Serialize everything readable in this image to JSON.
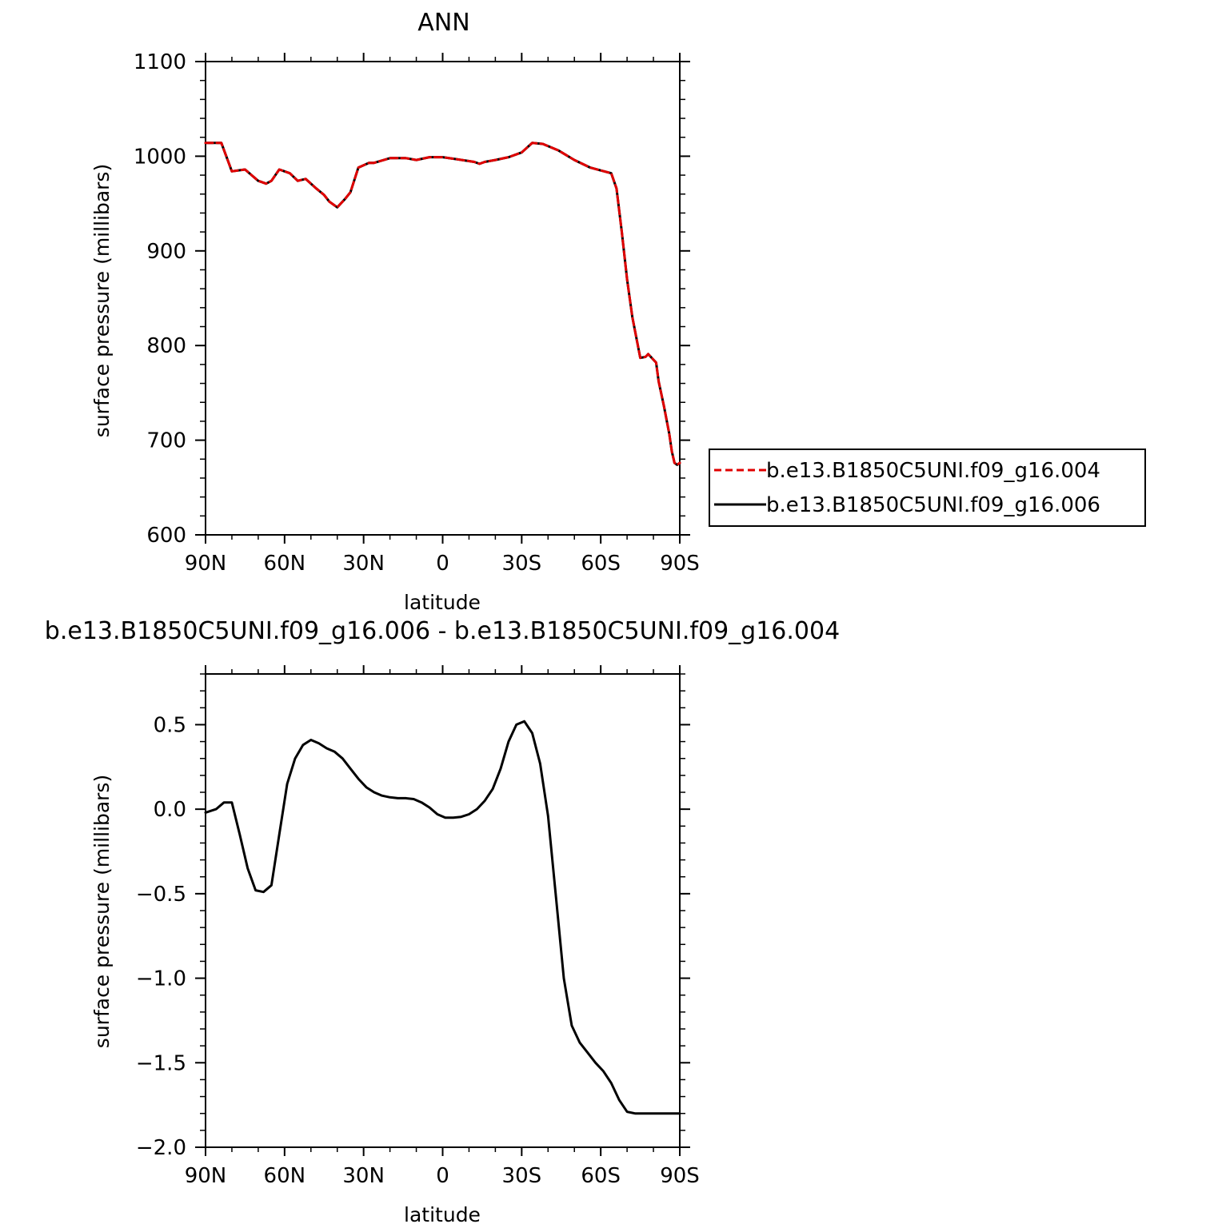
{
  "chart_data": [
    {
      "type": "line",
      "title": "ANN",
      "xlabel": "latitude",
      "ylabel": "surface pressure (millibars)",
      "xlim": [
        90,
        -90
      ],
      "ylim": [
        600,
        1100
      ],
      "x_ticks": [
        {
          "value": 90,
          "label": "90N"
        },
        {
          "value": 60,
          "label": "60N"
        },
        {
          "value": 30,
          "label": "30N"
        },
        {
          "value": 0,
          "label": "0"
        },
        {
          "value": -30,
          "label": "30S"
        },
        {
          "value": -60,
          "label": "60S"
        },
        {
          "value": -90,
          "label": "90S"
        }
      ],
      "y_ticks": [
        {
          "value": 600,
          "label": "600"
        },
        {
          "value": 700,
          "label": "700"
        },
        {
          "value": 800,
          "label": "800"
        },
        {
          "value": 900,
          "label": "900"
        },
        {
          "value": 1000,
          "label": "1000"
        },
        {
          "value": 1100,
          "label": "1100"
        }
      ],
      "legend": "right",
      "x": [
        90,
        84,
        80,
        75,
        70,
        67,
        65,
        62,
        60,
        58,
        55,
        52,
        48,
        45,
        43,
        40,
        37,
        35,
        32,
        28,
        26,
        20,
        14,
        10,
        5,
        0,
        -5,
        -12,
        -14,
        -16,
        -20,
        -25,
        -30,
        -34,
        -38,
        -44,
        -50,
        -56,
        -60,
        -64,
        -66,
        -68,
        -70,
        -72,
        -75,
        -77,
        -78,
        -81,
        -82,
        -84,
        -86,
        -87,
        -88,
        -89,
        -90
      ],
      "series": [
        {
          "name": "b.e13.B1850C5UNI.f09_g16.004",
          "color": "#e00000",
          "dash": "dashed",
          "values": [
            1014,
            1014,
            984,
            986,
            974,
            971,
            974,
            986,
            984,
            982,
            974,
            976,
            966,
            959,
            952,
            946,
            955,
            962,
            988,
            993,
            993,
            998,
            998,
            996,
            999,
            999,
            997,
            994,
            992,
            994,
            996,
            999,
            1004,
            1014,
            1013,
            1006,
            996,
            988,
            985,
            982,
            966,
            920,
            870,
            830,
            787,
            788,
            791,
            782,
            762,
            736,
            707,
            688,
            676,
            674,
            676
          ]
        },
        {
          "name": "b.e13.B1850C5UNI.f09_g16.006",
          "color": "#000000",
          "dash": "solid",
          "values": [
            1014,
            1014,
            984,
            986,
            974,
            971,
            974,
            986,
            984,
            982,
            974,
            976,
            966,
            959,
            952,
            946,
            955,
            962,
            988,
            993,
            993,
            998,
            998,
            996,
            999,
            999,
            997,
            994,
            992,
            994,
            996,
            999,
            1004,
            1014,
            1013,
            1006,
            996,
            988,
            985,
            982,
            966,
            920,
            870,
            830,
            787,
            788,
            791,
            782,
            762,
            736,
            707,
            688,
            676,
            674,
            676
          ]
        }
      ]
    },
    {
      "type": "line",
      "title": "b.e13.B1850C5UNI.f09_g16.006 - b.e13.B1850C5UNI.f09_g16.004",
      "xlabel": "latitude",
      "ylabel": "surface pressure (millibars)",
      "xlim": [
        90,
        -90
      ],
      "ylim": [
        -2.0,
        0.8
      ],
      "x_ticks": [
        {
          "value": 90,
          "label": "90N"
        },
        {
          "value": 60,
          "label": "60N"
        },
        {
          "value": 30,
          "label": "30N"
        },
        {
          "value": 0,
          "label": "0"
        },
        {
          "value": -30,
          "label": "30S"
        },
        {
          "value": -60,
          "label": "60S"
        },
        {
          "value": -90,
          "label": "90S"
        }
      ],
      "y_ticks": [
        {
          "value": -2.0,
          "label": "−2.0"
        },
        {
          "value": -1.5,
          "label": "−1.5"
        },
        {
          "value": -1.0,
          "label": "−1.0"
        },
        {
          "value": -0.5,
          "label": "−0.5"
        },
        {
          "value": 0.0,
          "label": "0.0"
        },
        {
          "value": 0.5,
          "label": "0.5"
        }
      ],
      "x": [
        90,
        86,
        83,
        80,
        77,
        74,
        71,
        68,
        65,
        62,
        59,
        56,
        53,
        50,
        47,
        44,
        41,
        38,
        35,
        32,
        29,
        26,
        23,
        20,
        17,
        14,
        11,
        8,
        5,
        2,
        -1,
        -4,
        -7,
        -10,
        -13,
        -16,
        -19,
        -22,
        -25,
        -28,
        -31,
        -34,
        -37,
        -40,
        -43,
        -46,
        -49,
        -52,
        -55,
        -58,
        -61,
        -64,
        -67,
        -70,
        -73,
        -76,
        -79,
        -82,
        -85,
        -86,
        -88,
        -90
      ],
      "series": [
        {
          "name": "",
          "color": "#000000",
          "dash": "solid",
          "values": [
            -0.02,
            0.0,
            0.04,
            0.04,
            -0.15,
            -0.35,
            -0.48,
            -0.49,
            -0.45,
            -0.15,
            0.15,
            0.3,
            0.38,
            0.41,
            0.39,
            0.36,
            0.34,
            0.3,
            0.24,
            0.18,
            0.13,
            0.1,
            0.08,
            0.07,
            0.065,
            0.065,
            0.06,
            0.04,
            0.01,
            -0.03,
            -0.05,
            -0.05,
            -0.045,
            -0.03,
            0.0,
            0.05,
            0.12,
            0.24,
            0.4,
            0.5,
            0.52,
            0.45,
            0.27,
            -0.04,
            -0.52,
            -1.0,
            -1.28,
            -1.38,
            -1.44,
            -1.5,
            -1.55,
            -1.62,
            -1.72,
            -1.79,
            -1.8,
            -1.8,
            -1.8,
            -1.8,
            -1.8,
            -1.8,
            -1.8,
            -1.8
          ]
        }
      ]
    }
  ]
}
